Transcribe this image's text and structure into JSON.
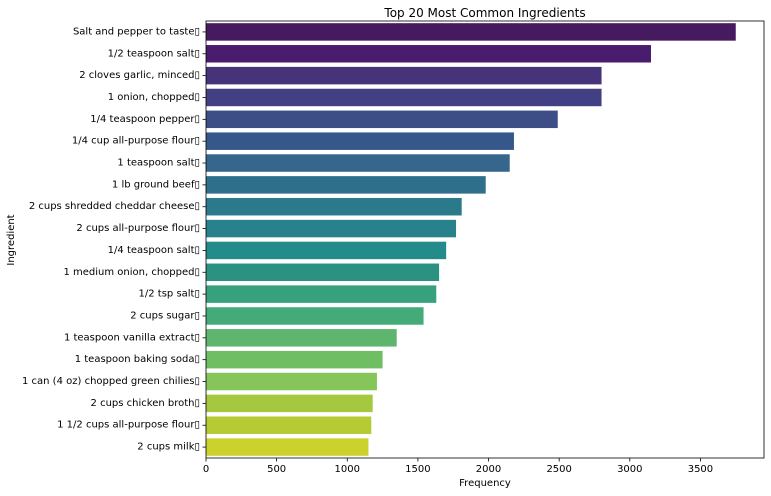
{
  "chart_data": {
    "type": "bar",
    "orientation": "horizontal",
    "title": "Top 20 Most Common Ingredients",
    "xlabel": "Frequency",
    "ylabel": "Ingredient",
    "xlim": [
      0,
      3950
    ],
    "xticks": [
      0,
      500,
      1000,
      1500,
      2000,
      2500,
      3000,
      3500
    ],
    "grid": false,
    "legend": "none",
    "colormap": "viridis",
    "categories": [
      "Salt and pepper to taste▯",
      "1/2 teaspoon salt▯",
      "2 cloves garlic, minced▯",
      "1 onion, chopped▯",
      "1/4 teaspoon pepper▯",
      "1/4 cup all-purpose flour▯",
      "1 teaspoon salt▯",
      "1 lb ground beef▯",
      "2 cups shredded cheddar cheese▯",
      "2 cups all-purpose flour▯",
      "1/4 teaspoon salt▯",
      "1 medium onion, chopped▯",
      "1/2 tsp salt▯",
      "2 cups sugar▯",
      "1 teaspoon vanilla extract▯",
      "1 teaspoon baking soda▯",
      "1 can (4 oz) chopped green chilies▯",
      "2 cups chicken broth▯",
      "1 1/2 cups all-purpose flour▯",
      "2 cups milk▯"
    ],
    "values": [
      3750,
      3150,
      2800,
      2800,
      2490,
      2180,
      2150,
      1980,
      1810,
      1770,
      1700,
      1650,
      1630,
      1540,
      1350,
      1250,
      1210,
      1180,
      1170,
      1150
    ],
    "colors": [
      "#461a5e",
      "#4a1c6e",
      "#473379",
      "#423f84",
      "#3d4e86",
      "#36578a",
      "#36668b",
      "#2e6f8c",
      "#2a7a8c",
      "#27828b",
      "#238b8a",
      "#2b9281",
      "#36a17c",
      "#43aa78",
      "#5db56e",
      "#6fbe64",
      "#85c55a",
      "#a4c840",
      "#b6ca33",
      "#ccd22c"
    ]
  }
}
